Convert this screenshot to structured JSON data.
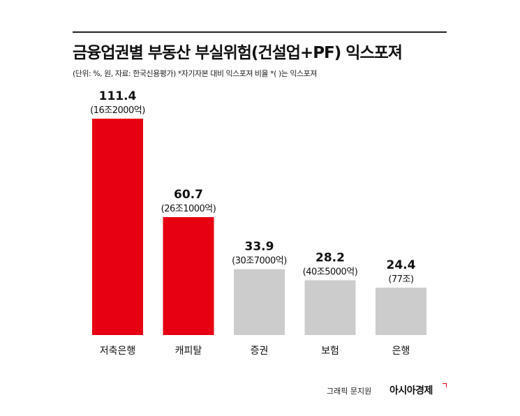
{
  "header": {
    "title": "금융업권별 부동산 부실위험(건설업+PF) 익스포져",
    "subtitle": "(단위: %, 원, 자료: 한국신용평가) *자기자본 대비 익스포져 비율 *( )는 익스포져"
  },
  "footer": {
    "credit": "그래픽 문지원",
    "logo": "아시아경제"
  },
  "colors": {
    "highlight": "#e60012",
    "normal": "#cccccc"
  },
  "chart_data": {
    "type": "bar",
    "title": "금융업권별 부동산 부실위험(건설업+PF) 익스포져",
    "categories": [
      "저축은행",
      "캐피탈",
      "증권",
      "보험",
      "은행"
    ],
    "values": [
      111.4,
      60.7,
      33.9,
      28.2,
      24.4
    ],
    "value_labels": [
      "111.4",
      "60.7",
      "33.9",
      "28.2",
      "24.4"
    ],
    "exposure_labels": [
      "(16조2000억)",
      "(26조1000억)",
      "(30조7000억)",
      "(40조5000억)",
      "(77조)"
    ],
    "highlighted": [
      true,
      true,
      false,
      false,
      false
    ],
    "ylim": [
      0,
      120
    ],
    "grid": false,
    "legend": "none"
  }
}
